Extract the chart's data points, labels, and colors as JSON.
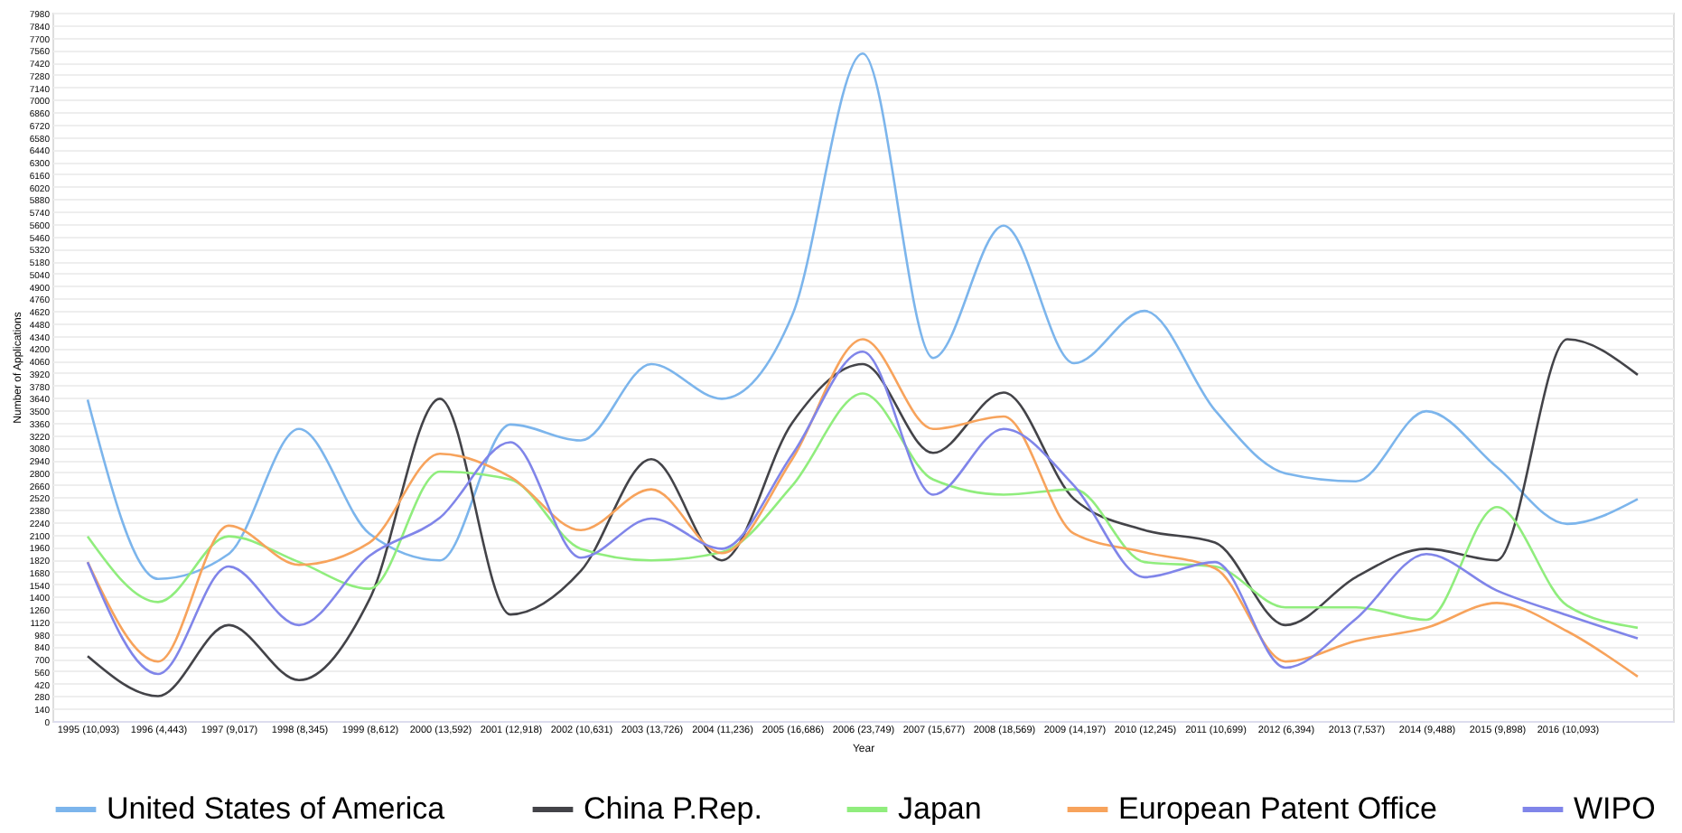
{
  "chart_data": {
    "type": "line",
    "xlabel": "Year",
    "ylabel": "Number of Applications",
    "categories": [
      "1995 (10,093)",
      "1996 (4,443)",
      "1997 (9,017)",
      "1998 (8,345)",
      "1999 (8,612)",
      "2000 (13,592)",
      "2001 (12,918)",
      "2002 (10,631)",
      "2003 (13,726)",
      "2004 (11,236)",
      "2005 (16,686)",
      "2006 (23,749)",
      "2007 (15,677)",
      "2008 (18,569)",
      "2009 (14,197)",
      "2010 (12,245)",
      "2011 (10,699)",
      "2012 (6,394)",
      "2013 (7,537)",
      "2014 (9,488)",
      "2015 (9,898)",
      "2016 (10,093)",
      null
    ],
    "series": [
      {
        "name": "United States of America",
        "color": "#7cb5ec",
        "values": [
          3620,
          1600,
          1880,
          3290,
          2110,
          1810,
          3340,
          3160,
          4020,
          3630,
          4570,
          7520,
          4090,
          5580,
          4030,
          4620,
          3500,
          2790,
          2700,
          3490,
          2860,
          2220,
          2500
        ]
      },
      {
        "name": "China P.Rep.",
        "color": "#434348",
        "values": [
          730,
          280,
          1080,
          460,
          1370,
          3630,
          1200,
          1690,
          2950,
          1810,
          3360,
          4020,
          3020,
          3700,
          2500,
          2150,
          2010,
          1080,
          1620,
          1940,
          1810,
          4300,
          3900
        ]
      },
      {
        "name": "Japan",
        "color": "#90ed7d",
        "values": [
          2080,
          1340,
          2080,
          1790,
          1490,
          2810,
          2720,
          1940,
          1810,
          1900,
          2650,
          3690,
          2720,
          2550,
          2610,
          1790,
          1740,
          1280,
          1280,
          1140,
          2410,
          1300,
          1050
        ]
      },
      {
        "name": "European Patent Office",
        "color": "#f7a35c",
        "values": [
          1790,
          670,
          2200,
          1760,
          2010,
          3010,
          2750,
          2150,
          2610,
          1890,
          2950,
          4300,
          3290,
          3430,
          2110,
          1900,
          1720,
          670,
          900,
          1050,
          1330,
          1010,
          500
        ]
      },
      {
        "name": "WIPO",
        "color": "#8085e9",
        "values": [
          1790,
          530,
          1740,
          1080,
          1860,
          2290,
          3140,
          1840,
          2280,
          1940,
          3000,
          4160,
          2550,
          3290,
          2650,
          1620,
          1790,
          600,
          1150,
          1880,
          1470,
          1190,
          930
        ]
      }
    ],
    "ylim": [
      0,
      7980
    ],
    "yticks": [
      0,
      140,
      280,
      420,
      560,
      700,
      840,
      980,
      1120,
      1260,
      1400,
      1540,
      1680,
      1820,
      1960,
      2100,
      2240,
      2380,
      2520,
      2660,
      2800,
      2940,
      3080,
      3220,
      3360,
      3500,
      3640,
      3780,
      3920,
      4060,
      4200,
      4340,
      4480,
      4620,
      4760,
      4900,
      5040,
      5180,
      5320,
      5460,
      5600,
      5740,
      5880,
      6020,
      6160,
      6300,
      6440,
      6580,
      6720,
      6860,
      7000,
      7140,
      7280,
      7420,
      7560,
      7700,
      7840,
      7980
    ],
    "grid": "y",
    "legend": "bottom"
  }
}
